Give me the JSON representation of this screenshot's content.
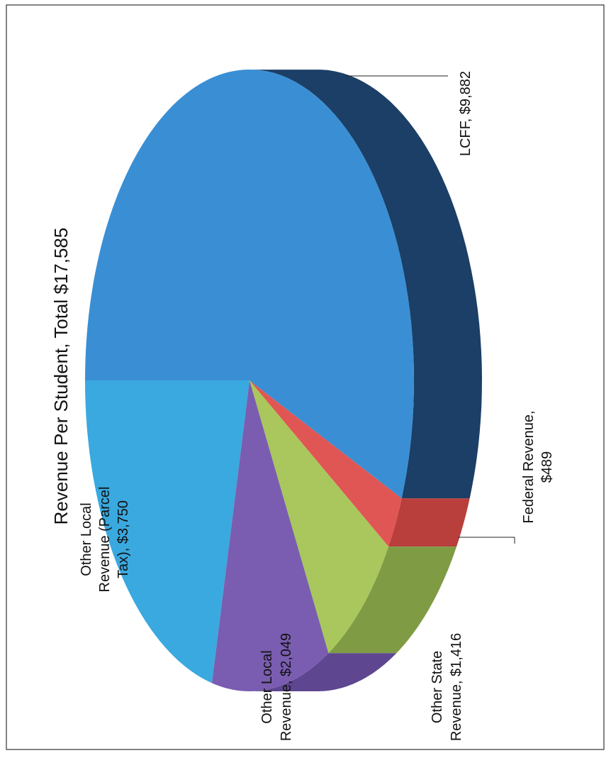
{
  "chart_data": {
    "type": "pie",
    "title": "Revenue Per Student, Total $17,585",
    "orientation": "rotated 90 degrees counter-clockwise",
    "style": "3D",
    "slices": [
      {
        "name": "LCFF",
        "value": 9882,
        "label": "LCFF, $9,882",
        "color": "#3a8fd4",
        "side_color": "#1b3f66"
      },
      {
        "name": "Federal Revenue",
        "value": 489,
        "label": "Federal Revenue, $489",
        "color": "#e05654",
        "side_color": "#b83f3c"
      },
      {
        "name": "Other State Revenue",
        "value": 1416,
        "label": "Other State Revenue, $1,416",
        "color": "#a9c75c",
        "side_color": "#7f9b44"
      },
      {
        "name": "Other Local Revenue",
        "value": 2049,
        "label": "Other Local Revenue, $2,049",
        "color": "#7a5db0",
        "side_color": "#5e4690"
      },
      {
        "name": "Other Local Revenue (Parcel Tax)",
        "value": 3750,
        "label": "Other Local Revenue (Parcel Tax), $3,750",
        "color": "#3aa9df",
        "side_color": "#2b8bc0"
      }
    ]
  },
  "labels": {
    "title": "Revenue Per Student, Total $17,585",
    "lcff_line1": "LCFF, $9,882",
    "federal_line1": "Federal Revenue,",
    "federal_line2": "$489",
    "other_state_line1": "Other State",
    "other_state_line2": "Revenue, $1,416",
    "other_local_line1": "Other Local",
    "other_local_line2": "Revenue, $2,049",
    "parcel_line1": "Other Local",
    "parcel_line2": "Revenue (Parcel",
    "parcel_line3": "Tax), $3,750"
  }
}
